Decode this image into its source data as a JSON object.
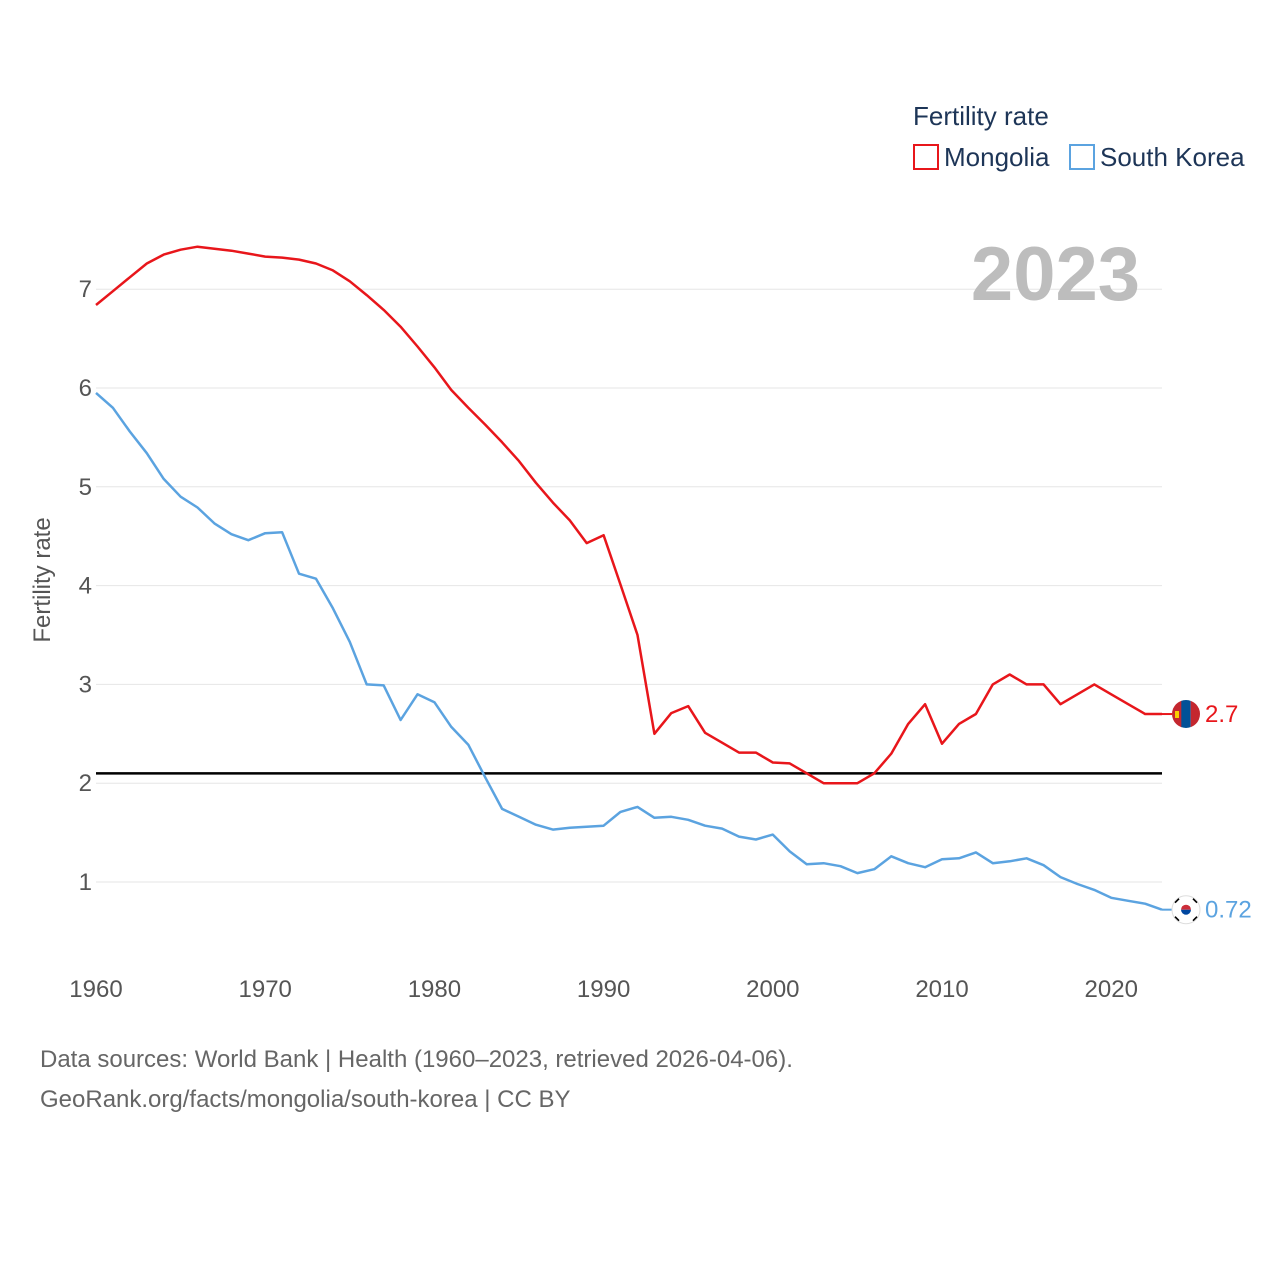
{
  "chart_data": {
    "type": "line",
    "title": "Fertility rate",
    "year_label": "2023",
    "xlabel": "",
    "ylabel": "Fertility rate",
    "xlim": [
      1960,
      2023
    ],
    "ylim": [
      0,
      7.7
    ],
    "x_ticks": [
      1960,
      1970,
      1980,
      1990,
      2000,
      2010,
      2020
    ],
    "y_ticks": [
      1,
      2,
      3,
      4,
      5,
      6,
      7
    ],
    "reference_line": 2.1,
    "grid": true,
    "legend_position": "top-right",
    "x": [
      1960,
      1961,
      1962,
      1963,
      1964,
      1965,
      1966,
      1967,
      1968,
      1969,
      1970,
      1971,
      1972,
      1973,
      1974,
      1975,
      1976,
      1977,
      1978,
      1979,
      1980,
      1981,
      1982,
      1983,
      1984,
      1985,
      1986,
      1987,
      1988,
      1989,
      1990,
      1991,
      1992,
      1993,
      1994,
      1995,
      1996,
      1997,
      1998,
      1999,
      2000,
      2001,
      2002,
      2003,
      2004,
      2005,
      2006,
      2007,
      2008,
      2009,
      2010,
      2011,
      2012,
      2013,
      2014,
      2015,
      2016,
      2017,
      2018,
      2019,
      2020,
      2021,
      2022,
      2023
    ],
    "series": [
      {
        "name": "Mongolia",
        "color": "#e8161b",
        "end_label": "2.7",
        "values": [
          6.84,
          6.98,
          7.12,
          7.26,
          7.35,
          7.4,
          7.43,
          7.41,
          7.39,
          7.36,
          7.33,
          7.32,
          7.3,
          7.26,
          7.19,
          7.08,
          6.94,
          6.79,
          6.62,
          6.42,
          6.21,
          5.98,
          5.8,
          5.63,
          5.45,
          5.26,
          5.04,
          4.84,
          4.66,
          4.43,
          4.51,
          4.01,
          3.5,
          2.5,
          2.71,
          2.78,
          2.51,
          2.41,
          2.31,
          2.31,
          2.21,
          2.2,
          2.1,
          2.0,
          2.0,
          2.0,
          2.1,
          2.3,
          2.6,
          2.8,
          2.4,
          2.6,
          2.7,
          3.0,
          3.1,
          3.0,
          3.0,
          2.8,
          2.9,
          3.0,
          2.9,
          2.8,
          2.7,
          2.7
        ]
      },
      {
        "name": "South Korea",
        "color": "#5ba3e0",
        "end_label": "0.72",
        "values": [
          5.95,
          5.8,
          5.56,
          5.34,
          5.08,
          4.9,
          4.79,
          4.63,
          4.52,
          4.46,
          4.53,
          4.54,
          4.12,
          4.07,
          3.77,
          3.43,
          3.0,
          2.99,
          2.64,
          2.9,
          2.82,
          2.57,
          2.39,
          2.06,
          1.74,
          1.66,
          1.58,
          1.53,
          1.55,
          1.56,
          1.57,
          1.71,
          1.76,
          1.65,
          1.66,
          1.63,
          1.57,
          1.54,
          1.46,
          1.43,
          1.48,
          1.31,
          1.18,
          1.19,
          1.16,
          1.09,
          1.13,
          1.26,
          1.19,
          1.15,
          1.23,
          1.24,
          1.3,
          1.19,
          1.21,
          1.24,
          1.17,
          1.05,
          0.98,
          0.92,
          0.84,
          0.81,
          0.78,
          0.72
        ]
      }
    ]
  },
  "footer": {
    "line1": "Data sources: World Bank | Health (1960–2023, retrieved 2026-04-06).",
    "line2": "GeoRank.org/facts/mongolia/south-korea | CC BY"
  }
}
